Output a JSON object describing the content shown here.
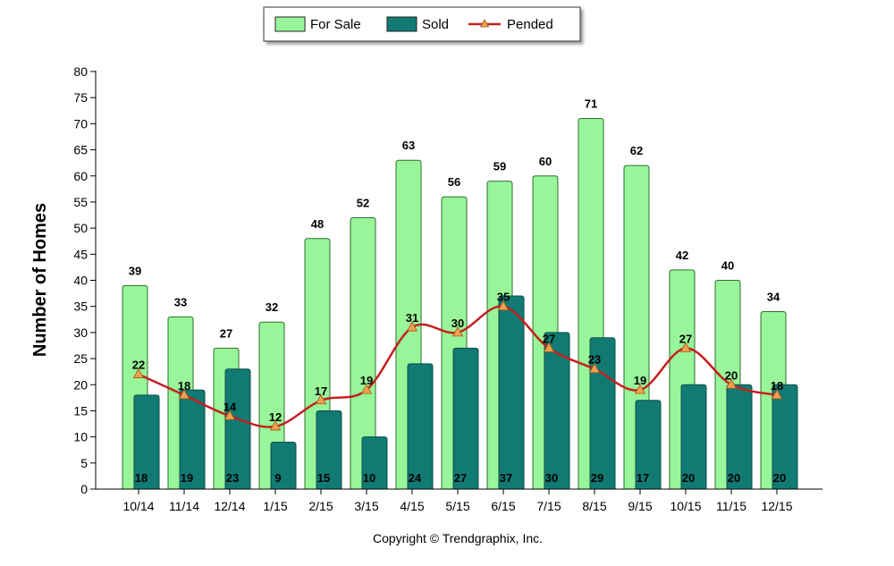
{
  "chart_data": {
    "type": "bar",
    "categories": [
      "10/14",
      "11/14",
      "12/14",
      "1/15",
      "2/15",
      "3/15",
      "4/15",
      "5/15",
      "6/15",
      "7/15",
      "8/15",
      "9/15",
      "10/15",
      "11/15",
      "12/15"
    ],
    "series": [
      {
        "name": "For Sale",
        "type": "bar",
        "color": "#99f599",
        "values": [
          39,
          33,
          27,
          32,
          48,
          52,
          63,
          56,
          59,
          60,
          71,
          62,
          42,
          40,
          34
        ]
      },
      {
        "name": "Sold",
        "type": "bar",
        "color": "#117a73",
        "values": [
          18,
          19,
          23,
          9,
          15,
          10,
          24,
          27,
          37,
          30,
          29,
          17,
          20,
          20,
          20
        ]
      },
      {
        "name": "Pended",
        "type": "line",
        "color": "#c42020",
        "marker_color": "#f0a050",
        "values": [
          22,
          18,
          14,
          12,
          17,
          19,
          31,
          30,
          35,
          27,
          23,
          19,
          27,
          20,
          18
        ]
      }
    ],
    "ylabel": "Number of Homes",
    "xlabel": "",
    "ylim": [
      0,
      80
    ],
    "yticks": [
      0,
      5,
      10,
      15,
      20,
      25,
      30,
      35,
      40,
      45,
      50,
      55,
      60,
      65,
      70,
      75,
      80
    ],
    "grid": false,
    "legend_position": "top-center"
  },
  "footer": {
    "copyright": "Copyright © Trendgraphix, Inc."
  }
}
